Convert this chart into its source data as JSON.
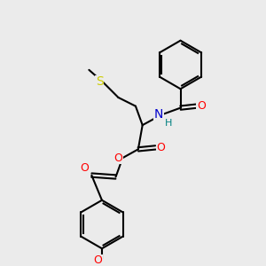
{
  "background_color": "#ebebeb",
  "bond_color": "#000000",
  "atom_colors": {
    "O": "#ff0000",
    "N": "#0000cc",
    "S": "#cccc00",
    "H": "#008080",
    "C": "#000000"
  },
  "lw": 1.5,
  "fontsize": 9
}
